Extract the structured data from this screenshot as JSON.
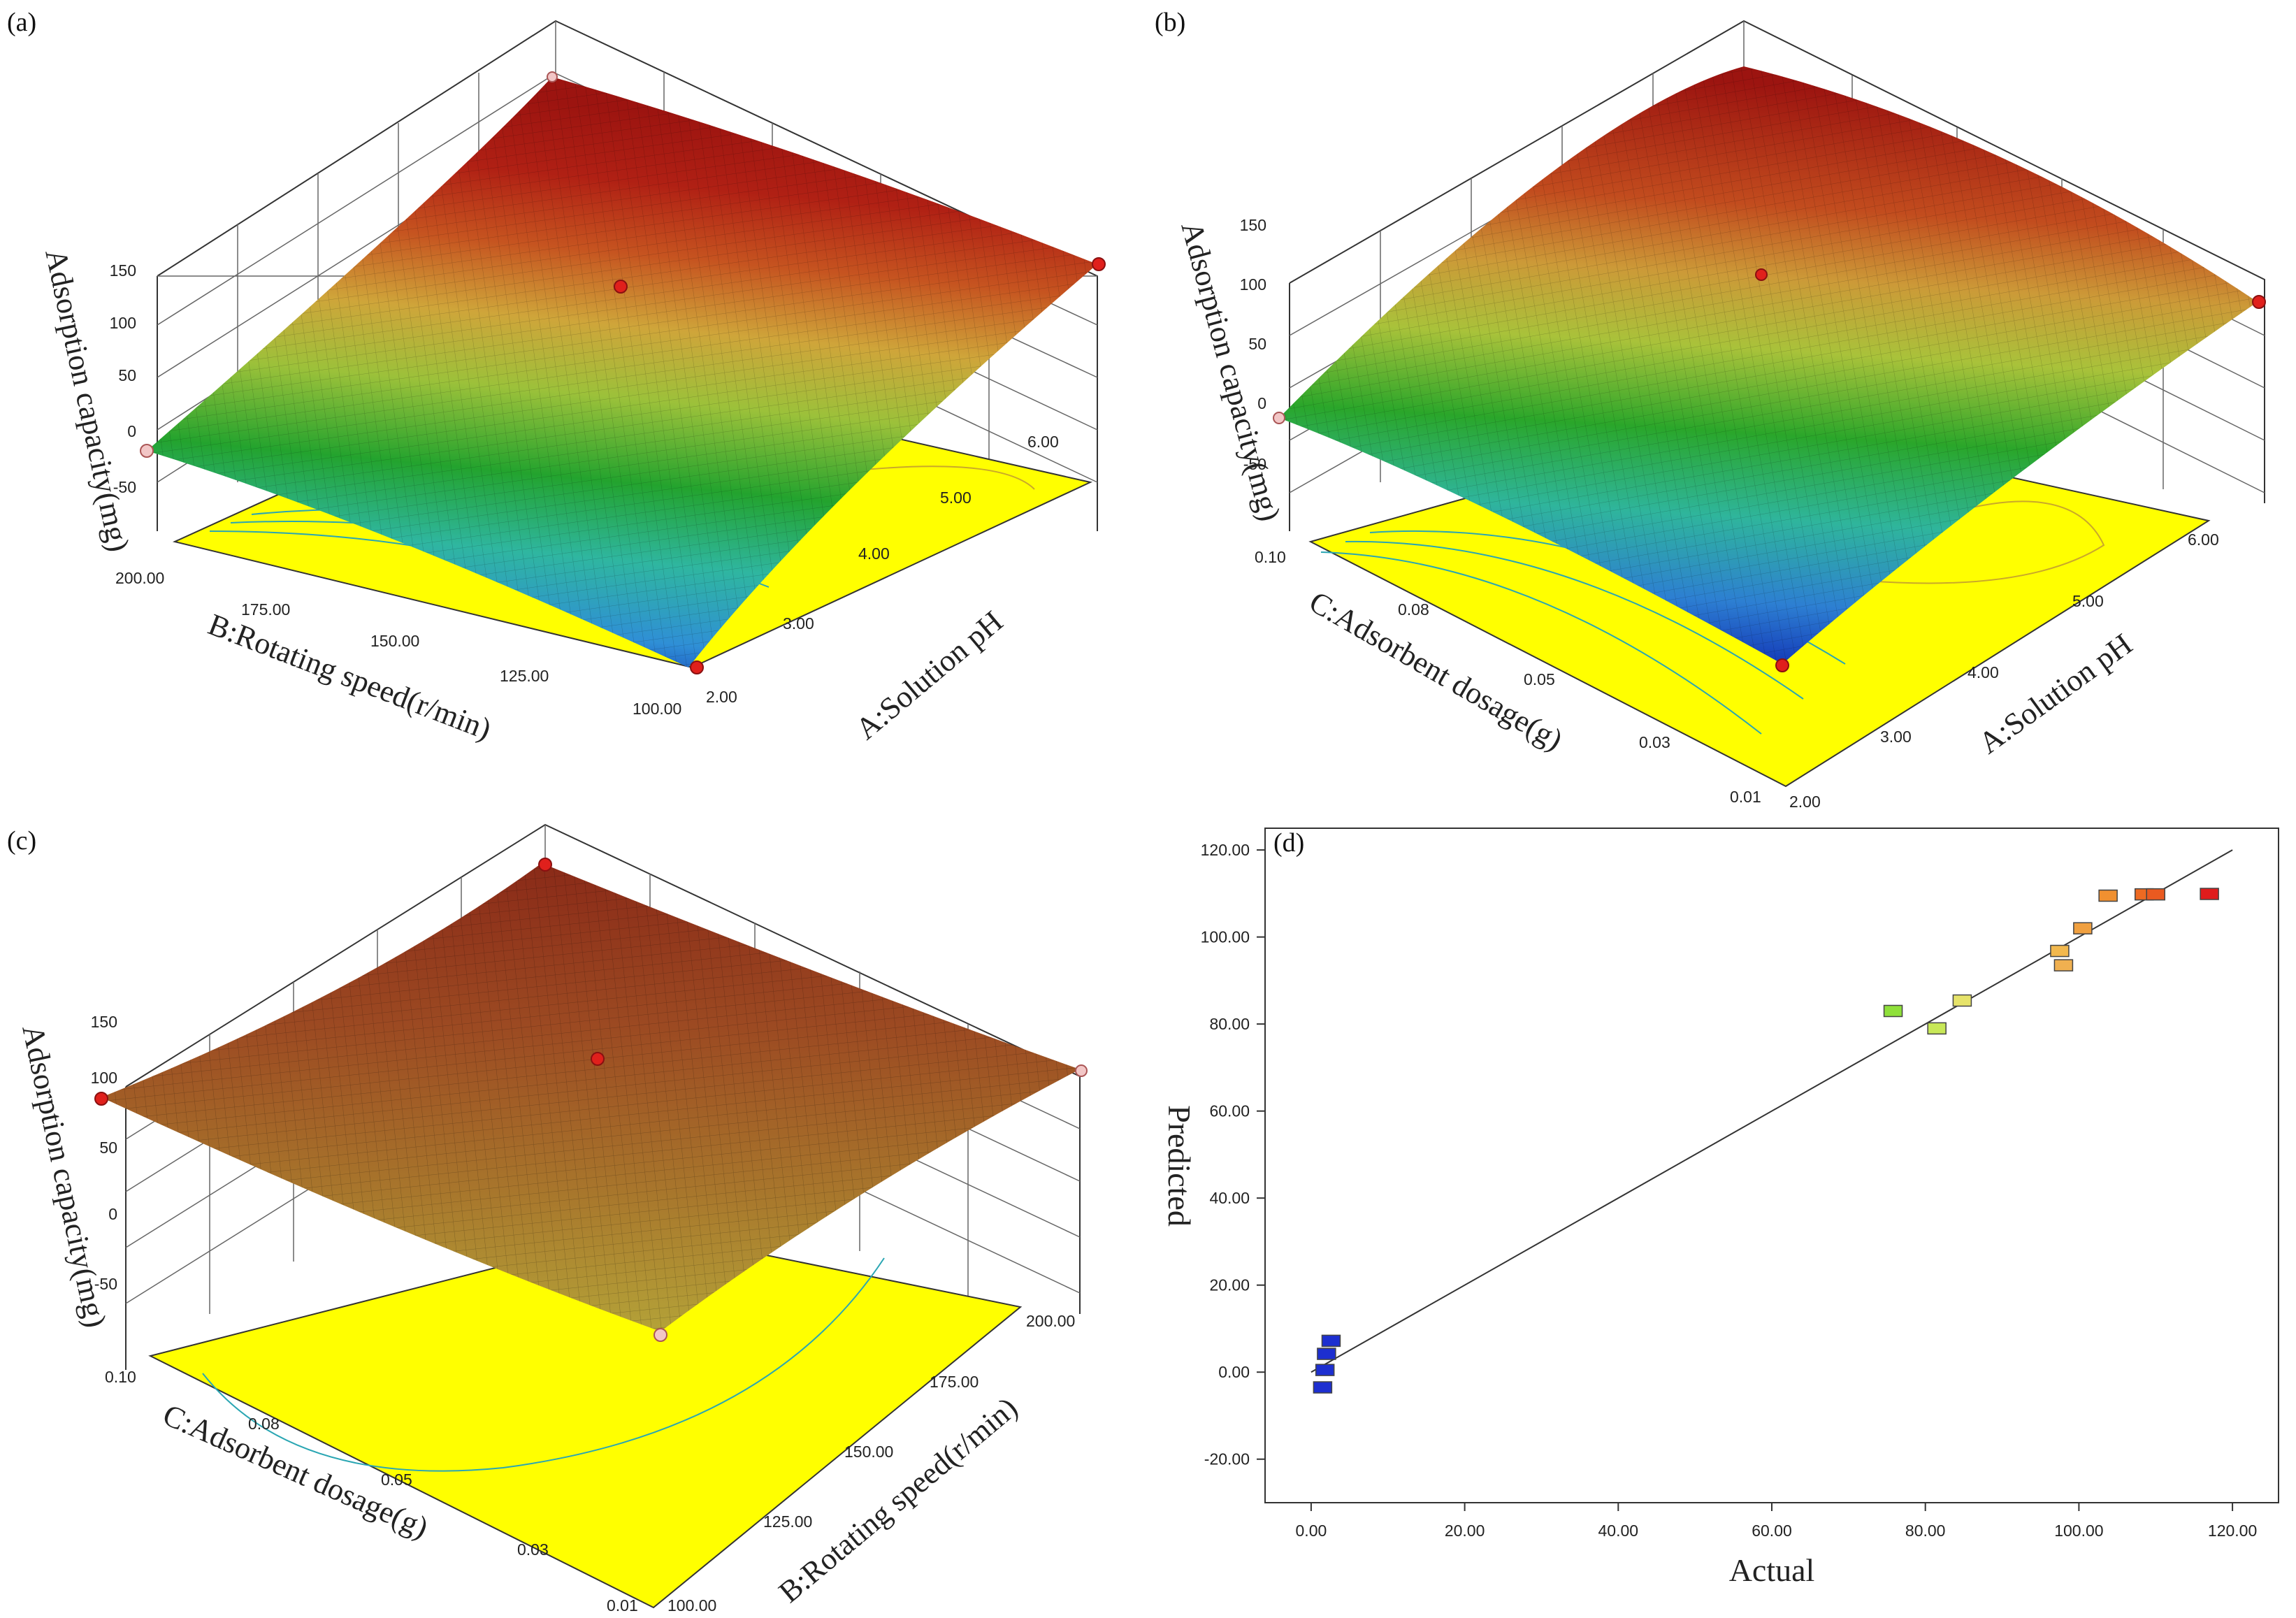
{
  "chart_data": [
    {
      "panel": "(a)",
      "type": "surface3d",
      "zlabel": "Adsorption capacity(mg)",
      "xlabel": "B:Rotating speed(r/min)",
      "ylabel": "A:Solution pH",
      "x_ticks": [
        "200.00",
        "175.00",
        "150.00",
        "125.00",
        "100.00"
      ],
      "y_ticks": [
        "2.00",
        "3.00",
        "4.00",
        "5.00",
        "6.00"
      ],
      "z_ticks": [
        "-50",
        "0",
        "50",
        "100",
        "150"
      ],
      "zlim": [
        -50,
        150
      ],
      "surface_corners": {
        "low_pH_low_speed": 0,
        "low_pH_high_speed": -5,
        "high_pH": 95,
        "peak": 130
      },
      "design_points": [
        0,
        104,
        110,
        0
      ]
    },
    {
      "panel": "(b)",
      "type": "surface3d",
      "zlabel": "Adsorption capacity(mg)",
      "xlabel": "C:Adsorbent dosage(g)",
      "ylabel": "A:Solution pH",
      "x_ticks": [
        "0.10",
        "0.08",
        "0.05",
        "0.03",
        "0.01"
      ],
      "y_ticks": [
        "2.00",
        "3.00",
        "4.00",
        "5.00",
        "6.00"
      ],
      "z_ticks": [
        "-50",
        "0",
        "50",
        "100",
        "150"
      ],
      "zlim": [
        -50,
        150
      ],
      "surface_corners": {
        "low_pH_high_dose": 0,
        "low_pH_low_dose": -10,
        "high_pH": 85,
        "peak": 135
      },
      "design_points": [
        0,
        105,
        95,
        -2
      ]
    },
    {
      "panel": "(c)",
      "type": "surface3d",
      "zlabel": "Adsorption capacity(mg)",
      "xlabel": "C:Adsorbent dosage(g)",
      "ylabel": "B:Rotating speed(r/min)",
      "x_ticks": [
        "0.10",
        "0.08",
        "0.05",
        "0.03",
        "0.01"
      ],
      "y_ticks": [
        "100.00",
        "125.00",
        "150.00",
        "175.00",
        "200.00"
      ],
      "z_ticks": [
        "-50",
        "0",
        "50",
        "100",
        "150"
      ],
      "zlim": [
        -50,
        150
      ],
      "surface_corners": {
        "far": 125,
        "left": 95,
        "right": 100,
        "front": 30
      },
      "design_points": [
        95,
        100,
        98,
        30
      ]
    },
    {
      "panel": "(d)",
      "type": "scatter",
      "xlabel": "Actual",
      "ylabel": "Predicted",
      "xlim": [
        -6,
        126
      ],
      "ylim": [
        -30,
        125
      ],
      "x_ticks": [
        0,
        20,
        40,
        60,
        80,
        100,
        120
      ],
      "y_ticks": [
        -20,
        0,
        20,
        40,
        60,
        80,
        100,
        120
      ],
      "tick_format": "0.00",
      "fit_line": {
        "x": [
          0,
          120
        ],
        "y": [
          0,
          120
        ]
      },
      "points": [
        {
          "x": 1.5,
          "y": -3.5,
          "color": "#1d2fd0"
        },
        {
          "x": 1.8,
          "y": 0.5,
          "color": "#1d2fd0"
        },
        {
          "x": 2.0,
          "y": 4.2,
          "color": "#1d2fd0"
        },
        {
          "x": 2.6,
          "y": 7.2,
          "color": "#1d2fd0"
        },
        {
          "x": 75.8,
          "y": 83.0,
          "color": "#8fe03a"
        },
        {
          "x": 81.5,
          "y": 79.0,
          "color": "#c8e858"
        },
        {
          "x": 84.8,
          "y": 85.4,
          "color": "#e6e36a"
        },
        {
          "x": 97.5,
          "y": 96.8,
          "color": "#f2b84e"
        },
        {
          "x": 98.0,
          "y": 93.5,
          "color": "#f0b050"
        },
        {
          "x": 100.5,
          "y": 102.0,
          "color": "#f0a040"
        },
        {
          "x": 103.8,
          "y": 109.5,
          "color": "#f09030"
        },
        {
          "x": 108.5,
          "y": 109.8,
          "color": "#ee6a22"
        },
        {
          "x": 110.0,
          "y": 109.8,
          "color": "#ea5a20"
        },
        {
          "x": 117.0,
          "y": 109.9,
          "color": "#e01c1c"
        }
      ]
    }
  ]
}
